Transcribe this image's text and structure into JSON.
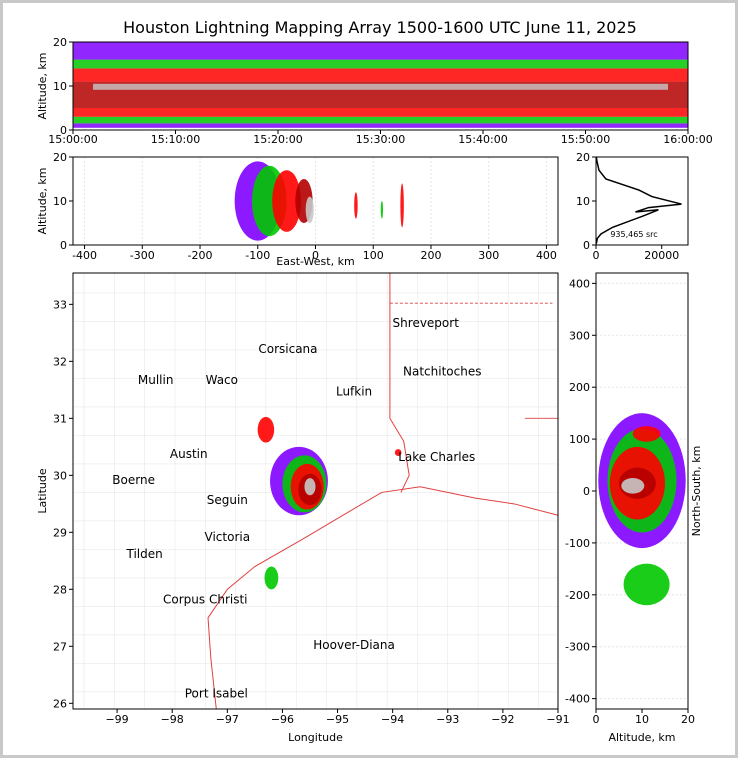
{
  "figure": {
    "title": "Houston Lightning Mapping Array 1500-1600 UTC June 11, 2025"
  },
  "chart_data": [
    {
      "id": "time-height",
      "type": "heatmap",
      "ylabel": "Altitude, km",
      "xlabel": "",
      "x_range": [
        "15:00:00",
        "16:00:00"
      ],
      "ylim": [
        0,
        20
      ],
      "xticks": [
        "15:00:00",
        "15:10:00",
        "15:20:00",
        "15:30:00",
        "15:40:00",
        "15:50:00",
        "16:00:00"
      ],
      "yticks": [
        0,
        10,
        20
      ],
      "bands_km": [
        {
          "from": 0.5,
          "to": 1.5,
          "density": "low"
        },
        {
          "from": 1.5,
          "to": 3.0,
          "density": "medium"
        },
        {
          "from": 3.0,
          "to": 5.0,
          "density": "high"
        },
        {
          "from": 5.0,
          "to": 11.0,
          "density": "very-high"
        },
        {
          "from": 11.0,
          "to": 14.0,
          "density": "high"
        },
        {
          "from": 14.0,
          "to": 16.0,
          "density": "medium"
        },
        {
          "from": 16.0,
          "to": 20.0,
          "density": "low"
        }
      ]
    },
    {
      "id": "ew-height",
      "type": "heatmap",
      "xlabel": "East-West, km",
      "ylabel": "Altitude, km",
      "xlim": [
        -420,
        420
      ],
      "ylim": [
        0,
        20
      ],
      "xticks": [
        -400,
        -300,
        -200,
        -100,
        0,
        100,
        200,
        300,
        400
      ],
      "yticks": [
        0,
        10,
        20
      ],
      "cells": [
        {
          "x": -100,
          "y": 10,
          "w": 80,
          "h": 18,
          "level": 1
        },
        {
          "x": -80,
          "y": 10,
          "w": 60,
          "h": 16,
          "level": 2
        },
        {
          "x": -50,
          "y": 10,
          "w": 50,
          "h": 14,
          "level": 3
        },
        {
          "x": -20,
          "y": 10,
          "w": 30,
          "h": 10,
          "level": 4
        },
        {
          "x": -10,
          "y": 8,
          "w": 14,
          "h": 6,
          "level": 5
        },
        {
          "x": 70,
          "y": 9,
          "w": 6,
          "h": 6,
          "level": 3
        },
        {
          "x": 115,
          "y": 8,
          "w": 4,
          "h": 4,
          "level": 2
        },
        {
          "x": 150,
          "y": 9,
          "w": 6,
          "h": 10,
          "level": 3
        }
      ]
    },
    {
      "id": "alt-histogram",
      "type": "line",
      "xlabel": "",
      "xlim": [
        0,
        28000
      ],
      "ylim": [
        0,
        20
      ],
      "xticks": [
        0,
        20000
      ],
      "yticks": [
        0,
        10,
        20
      ],
      "annotation": "935,465 src",
      "x": [
        100,
        400,
        1500,
        5000,
        14000,
        19000,
        12000,
        16000,
        26000,
        17000,
        13000,
        9000,
        3000,
        900,
        300,
        100
      ],
      "y": [
        0.3,
        1.5,
        2.5,
        4.0,
        6.5,
        8.0,
        7.5,
        8.5,
        9.3,
        11.0,
        12.5,
        13.5,
        15.0,
        17.0,
        19.0,
        20.0
      ]
    },
    {
      "id": "plan-view",
      "type": "heatmap",
      "xlabel": "Longitude",
      "ylabel": "Latitude",
      "xlim": [
        -99.8,
        -91.0
      ],
      "ylim": [
        25.9,
        33.55
      ],
      "xticks": [
        -99,
        -98,
        -97,
        -96,
        -95,
        -94,
        -93,
        -92,
        -91
      ],
      "yticks": [
        26,
        27,
        28,
        29,
        30,
        31,
        32,
        33
      ],
      "cities": [
        {
          "name": "Shreveport",
          "lon": -93.4,
          "lat": 32.6,
          "color": "#000000"
        },
        {
          "name": "Corsicana",
          "lon": -95.9,
          "lat": 32.15,
          "color": "#000000"
        },
        {
          "name": "Natchitoches",
          "lon": -93.1,
          "lat": 31.75,
          "color": "#000000"
        },
        {
          "name": "Mullin",
          "lon": -98.3,
          "lat": 31.6,
          "color": "#ff7f24"
        },
        {
          "name": "Waco",
          "lon": -97.1,
          "lat": 31.6,
          "color": "#000000"
        },
        {
          "name": "Lufkin",
          "lon": -94.7,
          "lat": 31.4,
          "color": "#000000"
        },
        {
          "name": "Lake Charles",
          "lon": -93.2,
          "lat": 30.25,
          "color": "#000000"
        },
        {
          "name": "Austin",
          "lon": -97.7,
          "lat": 30.3,
          "color": "#ff7f24"
        },
        {
          "name": "Boerne",
          "lon": -98.7,
          "lat": 29.85,
          "color": "#000000"
        },
        {
          "name": "Seguin",
          "lon": -97.0,
          "lat": 29.5,
          "color": "#000000"
        },
        {
          "name": "Victoria",
          "lon": -97.0,
          "lat": 28.85,
          "color": "#000000"
        },
        {
          "name": "Tilden",
          "lon": -98.5,
          "lat": 28.55,
          "color": "#000000"
        },
        {
          "name": "Corpus Christi",
          "lon": -97.4,
          "lat": 27.75,
          "color": "#000000"
        },
        {
          "name": "Hoover-Diana",
          "lon": -94.7,
          "lat": 26.95,
          "color": "#0000ff"
        },
        {
          "name": "Port Isabel",
          "lon": -97.2,
          "lat": 26.1,
          "color": "#000000"
        }
      ],
      "cells": [
        {
          "x": -95.7,
          "y": 29.9,
          "w": 1.05,
          "h": 1.2,
          "level": 1
        },
        {
          "x": -95.6,
          "y": 29.85,
          "w": 0.8,
          "h": 1.0,
          "level": 2
        },
        {
          "x": -95.55,
          "y": 29.8,
          "w": 0.6,
          "h": 0.8,
          "level": 3
        },
        {
          "x": -95.5,
          "y": 29.75,
          "w": 0.42,
          "h": 0.55,
          "level": 4
        },
        {
          "x": -95.5,
          "y": 29.8,
          "w": 0.2,
          "h": 0.3,
          "level": 5
        },
        {
          "x": -96.3,
          "y": 30.8,
          "w": 0.3,
          "h": 0.45,
          "level": 3
        },
        {
          "x": -96.2,
          "y": 28.2,
          "w": 0.25,
          "h": 0.4,
          "level": 2
        },
        {
          "x": -93.9,
          "y": 30.4,
          "w": 0.12,
          "h": 0.12,
          "level": 3
        }
      ]
    },
    {
      "id": "ns-height",
      "type": "heatmap",
      "xlabel": "Altitude, km",
      "ylabel": "North-South, km",
      "xlim": [
        0,
        20
      ],
      "ylim": [
        -420,
        420
      ],
      "xticks": [
        0,
        10,
        20
      ],
      "yticks": [
        -400,
        -300,
        -200,
        -100,
        0,
        100,
        200,
        300,
        400
      ],
      "cells": [
        {
          "x": 10,
          "y": 20,
          "w": 19,
          "h": 260,
          "level": 1
        },
        {
          "x": 10,
          "y": 20,
          "w": 15,
          "h": 200,
          "level": 2
        },
        {
          "x": 9,
          "y": 15,
          "w": 12,
          "h": 140,
          "level": 3
        },
        {
          "x": 9,
          "y": 15,
          "w": 8,
          "h": 60,
          "level": 4
        },
        {
          "x": 8,
          "y": 10,
          "w": 5,
          "h": 30,
          "level": 5
        },
        {
          "x": 11,
          "y": 110,
          "w": 6,
          "h": 30,
          "level": 3
        },
        {
          "x": 11,
          "y": -180,
          "w": 10,
          "h": 80,
          "level": 2
        }
      ]
    }
  ],
  "colors": {
    "level1": "#7f00ff",
    "level2": "#00c800",
    "level3": "#ff0000",
    "level4": "#b40000",
    "level5": "#c8c8c8",
    "state_border": "#e04040",
    "county_border": "#c8c8c8",
    "coast": "#e04040"
  }
}
